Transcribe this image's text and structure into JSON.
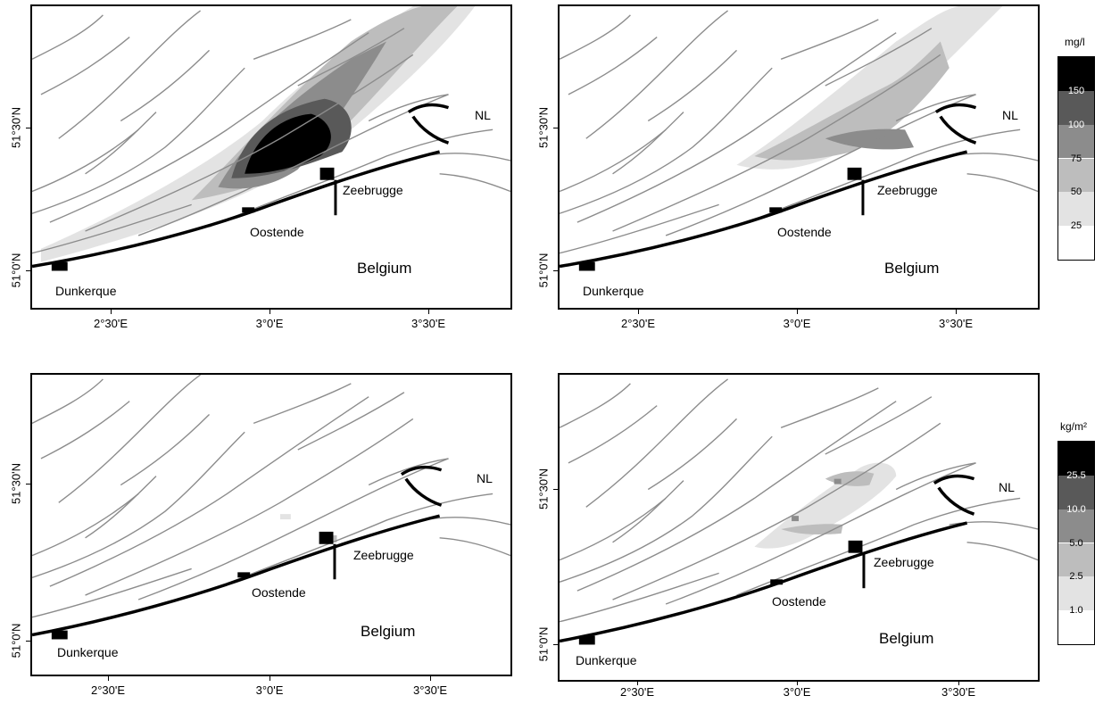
{
  "axes": {
    "x_ticks": [
      "2°30'E",
      "3°0'E",
      "3°30'E"
    ],
    "y_ticks": [
      "51°0'N",
      "51°30'N"
    ]
  },
  "places": {
    "nl": "NL",
    "zeebrugge": "Zeebrugge",
    "oostende": "Oostende",
    "belgium": "Belgium",
    "dunkerque": "Dunkerque"
  },
  "legends": {
    "concentration": {
      "unit": "mg/l",
      "levels": [
        "150",
        "100",
        "75",
        "50",
        "25"
      ],
      "colors": [
        "#000000",
        "#595959",
        "#8c8c8c",
        "#bdbdbd",
        "#e3e3e3",
        "#ffffff"
      ]
    },
    "deposition": {
      "unit": "kg/m²",
      "levels": [
        "25.5",
        "10.0",
        "5.0",
        "2.5",
        "1.0"
      ],
      "colors": [
        "#000000",
        "#595959",
        "#8c8c8c",
        "#bdbdbd",
        "#e3e3e3",
        "#ffffff"
      ]
    }
  },
  "colors": {
    "bathymetry_contour": "#8c8c8c",
    "coastline": "#000000"
  }
}
